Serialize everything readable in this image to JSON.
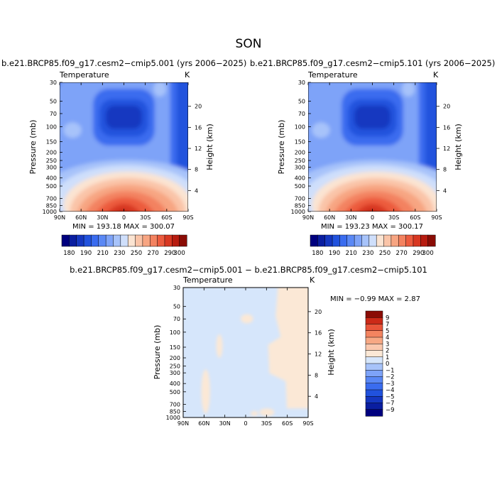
{
  "page_title": "SON",
  "panels": [
    {
      "title": "b.e21.BRCP85.f09_g17.cesm2−cmip5.001 (yrs 2006−2025)",
      "left_label": "Temperature",
      "right_label": "K",
      "ylabel": "Pressure (mb)",
      "y2label": "Height (km)",
      "minmax": "MIN = 193.18   MAX = 300.07"
    },
    {
      "title": "b.e21.BRCP85.f09_g17.cesm2−cmip5.101 (yrs 2006−2025)",
      "left_label": "Temperature",
      "right_label": "K",
      "ylabel": "Pressure (mb)",
      "y2label": "Height (km)",
      "minmax": "MIN = 193.23   MAX = 300.17"
    },
    {
      "title": "b.e21.BRCP85.f09_g17.cesm2−cmip5.001 − b.e21.BRCP85.f09_g17.cesm2−cmip5.101",
      "left_label": "Temperature",
      "right_label": "K",
      "ylabel": "Pressure (mb)",
      "y2label": "Height (km)",
      "minmax": "MIN =   −0.99   MAX =    2.87"
    }
  ],
  "chart_data": {
    "type": "heatmap",
    "x_ticks": [
      "90N",
      "60N",
      "30N",
      "0",
      "30S",
      "60S",
      "90S"
    ],
    "y_ticks": [
      "30",
      "50",
      "70",
      "100",
      "150",
      "200",
      "250",
      "300",
      "400",
      "500",
      "700",
      "850",
      "1000"
    ],
    "y_tick_values": [
      30,
      50,
      70,
      100,
      150,
      200,
      250,
      300,
      400,
      500,
      700,
      850,
      1000
    ],
    "y_range": [
      30,
      1000
    ],
    "y_scale": "log",
    "y2_ticks": [
      "4",
      "8",
      "12",
      "16",
      "20"
    ],
    "full_field": {
      "levels": [
        180,
        190,
        200,
        210,
        220,
        230,
        240,
        250,
        260,
        270,
        280,
        290,
        300
      ],
      "level_labels": [
        "180",
        "190",
        "210",
        "230",
        "250",
        "270",
        "290",
        "300"
      ],
      "colors": [
        "#00007f",
        "#0a1ea0",
        "#1537c0",
        "#2152dd",
        "#3a6cef",
        "#5a88f5",
        "#7ea3f8",
        "#a7c3fa",
        "#cfdffb",
        "#fbe4d2",
        "#fac4a8",
        "#f7a582",
        "#f38260",
        "#ec5b3e",
        "#d83822",
        "#b71c10",
        "#8a0c05"
      ],
      "ranges": [
        [
          193.18,
          300.07
        ],
        [
          193.23,
          300.17
        ]
      ]
    },
    "difference_field": {
      "levels": [
        -9,
        -7,
        -5,
        -4,
        -3,
        -2,
        -1,
        0,
        1,
        2,
        3,
        4,
        5,
        7,
        9
      ],
      "level_labels": [
        "9",
        "7",
        "5",
        "4",
        "3",
        "2",
        "1",
        "0",
        "−1",
        "−2",
        "−3",
        "−4",
        "−5",
        "−7",
        "−9"
      ],
      "colors": [
        "#00007f",
        "#0a1ea0",
        "#1537c0",
        "#2152dd",
        "#3a6cef",
        "#5a88f5",
        "#7ea3f8",
        "#a7c3fa",
        "#d6e6fb",
        "#fbe8d6",
        "#fac8ae",
        "#f7a884",
        "#f38460",
        "#e9553a",
        "#cc2a18",
        "#8a0c05"
      ],
      "range": [
        -0.99,
        2.87
      ]
    }
  }
}
